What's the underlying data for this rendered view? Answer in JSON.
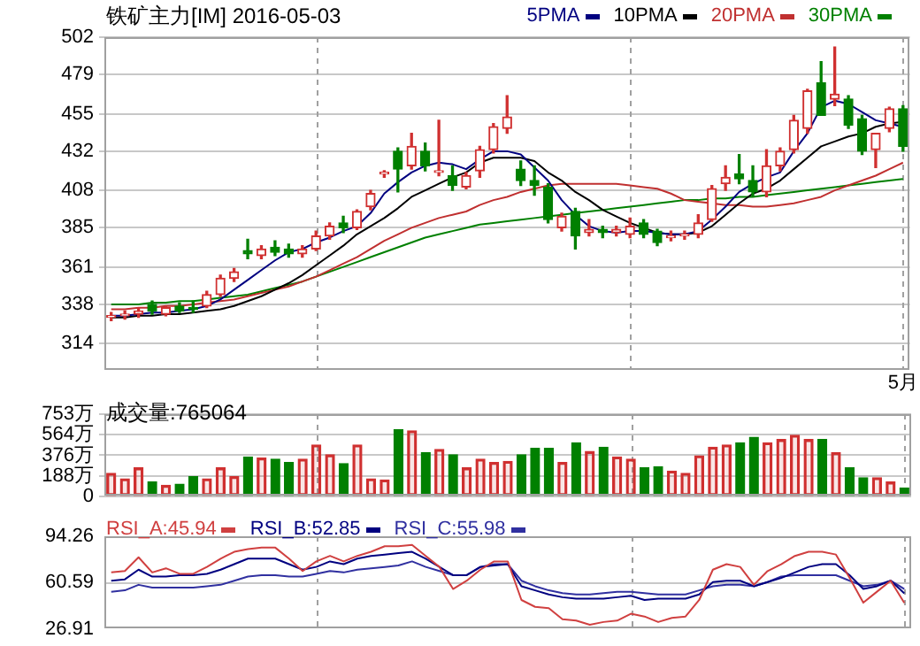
{
  "chart_data": [
    {
      "type": "candlestick",
      "title": "铁矿主力[IM] 2016-05-03",
      "categories": [
        null,
        null,
        null,
        null,
        null,
        null,
        null,
        null,
        null,
        null,
        null,
        null,
        null,
        null,
        null,
        null,
        null,
        null,
        null,
        null,
        null,
        null,
        null,
        null,
        null,
        null,
        null,
        null,
        null,
        null,
        null,
        null,
        null,
        null,
        null,
        null,
        null,
        null,
        null,
        null,
        null,
        null,
        null,
        null,
        null,
        null,
        null,
        null,
        null,
        null,
        null,
        null,
        null,
        null,
        null,
        null,
        null,
        null,
        "5月"
      ],
      "ohlc": [
        [
          330,
          333,
          328,
          331
        ],
        [
          331,
          334,
          329,
          332
        ],
        [
          332,
          336,
          330,
          334
        ],
        [
          338,
          340,
          332,
          334
        ],
        [
          332,
          337,
          331,
          336
        ],
        [
          337,
          339,
          333,
          334
        ],
        [
          336,
          340,
          333,
          335
        ],
        [
          337,
          346,
          336,
          344
        ],
        [
          344,
          356,
          343,
          354
        ],
        [
          354,
          360,
          352,
          358
        ],
        [
          371,
          378,
          366,
          369
        ],
        [
          368,
          374,
          366,
          372
        ],
        [
          373,
          377,
          368,
          370
        ],
        [
          372,
          375,
          367,
          369
        ],
        [
          369,
          374,
          367,
          372
        ],
        [
          372,
          383,
          371,
          380
        ],
        [
          380,
          388,
          378,
          386
        ],
        [
          388,
          392,
          382,
          385
        ],
        [
          385,
          396,
          384,
          395
        ],
        [
          398,
          408,
          396,
          406
        ],
        [
          418,
          420,
          416,
          419
        ],
        [
          432,
          434,
          407,
          421
        ],
        [
          423,
          443,
          421,
          435
        ],
        [
          432,
          437,
          420,
          423
        ],
        [
          419,
          451,
          417,
          420
        ],
        [
          417,
          423,
          408,
          411
        ],
        [
          410,
          419,
          409,
          417
        ],
        [
          420,
          435,
          416,
          433
        ],
        [
          433,
          449,
          431,
          447
        ],
        [
          446,
          466,
          443,
          453
        ],
        [
          421,
          426,
          411,
          414
        ],
        [
          414,
          423,
          405,
          411
        ],
        [
          410,
          412,
          388,
          390
        ],
        [
          385,
          394,
          383,
          392
        ],
        [
          395,
          397,
          372,
          380
        ],
        [
          382,
          390,
          380,
          384
        ],
        [
          384,
          386,
          379,
          382
        ],
        [
          382,
          386,
          380,
          384
        ],
        [
          381,
          391,
          379,
          386
        ],
        [
          388,
          390,
          379,
          381
        ],
        [
          383,
          384,
          374,
          376
        ],
        [
          379,
          383,
          377,
          380
        ],
        [
          380,
          383,
          378,
          381
        ],
        [
          381,
          393,
          379,
          388
        ],
        [
          390,
          411,
          389,
          409
        ],
        [
          412,
          423,
          408,
          416
        ],
        [
          418,
          430,
          412,
          415
        ],
        [
          414,
          423,
          404,
          407
        ],
        [
          407,
          433,
          404,
          423
        ],
        [
          423,
          434,
          420,
          432
        ],
        [
          433,
          454,
          431,
          451
        ],
        [
          446,
          470,
          443,
          469
        ],
        [
          474,
          487,
          454,
          454
        ],
        [
          464,
          496,
          460,
          467
        ],
        [
          464,
          466,
          446,
          448
        ],
        [
          452,
          454,
          430,
          432
        ],
        [
          433,
          443,
          422,
          443
        ],
        [
          446,
          459,
          444,
          458
        ],
        [
          458,
          460,
          432,
          435
        ]
      ],
      "colors": [
        "#d03030",
        "#d03030",
        "#d03030",
        "#008000",
        "#d03030",
        "#008000",
        "#008000",
        "#d03030",
        "#d03030",
        "#d03030",
        "#008000",
        "#d03030",
        "#008000",
        "#008000",
        "#d03030",
        "#d03030",
        "#d03030",
        "#008000",
        "#d03030",
        "#d03030",
        "#d03030",
        "#008000",
        "#d03030",
        "#008000",
        "#d03030",
        "#008000",
        "#d03030",
        "#d03030",
        "#d03030",
        "#d03030",
        "#008000",
        "#008000",
        "#008000",
        "#d03030",
        "#008000",
        "#d03030",
        "#008000",
        "#d03030",
        "#d03030",
        "#008000",
        "#008000",
        "#d03030",
        "#d03030",
        "#d03030",
        "#d03030",
        "#d03030",
        "#008000",
        "#008000",
        "#d03030",
        "#d03030",
        "#d03030",
        "#d03030",
        "#008000",
        "#d03030",
        "#008000",
        "#008000",
        "#d03030",
        "#d03030",
        "#008000"
      ],
      "series": [
        {
          "type": "line",
          "name": "5PMA",
          "color": "#000080",
          "values": [
            331,
            331,
            332,
            333,
            333,
            334,
            335,
            337,
            341,
            347,
            353,
            359,
            365,
            370,
            372,
            376,
            379,
            383,
            386,
            394,
            406,
            413,
            419,
            423,
            425,
            424,
            421,
            427,
            432,
            432,
            430,
            422,
            414,
            402,
            393,
            386,
            383,
            382,
            383,
            383,
            382,
            381,
            381,
            383,
            390,
            398,
            407,
            412,
            416,
            419,
            432,
            443,
            459,
            463,
            461,
            456,
            451,
            449,
            447
          ]
        },
        {
          "type": "line",
          "name": "10PMA",
          "color": "#000000",
          "values": [
            330,
            330,
            331,
            331,
            332,
            332,
            333,
            334,
            335,
            337,
            340,
            343,
            347,
            351,
            356,
            362,
            368,
            374,
            381,
            386,
            391,
            397,
            404,
            408,
            412,
            416,
            419,
            425,
            428,
            428,
            428,
            426,
            419,
            414,
            407,
            402,
            396,
            392,
            388,
            385,
            382,
            381,
            381,
            382,
            386,
            393,
            400,
            406,
            409,
            414,
            421,
            428,
            435,
            438,
            441,
            443,
            447,
            449,
            450
          ]
        },
        {
          "type": "line",
          "name": "20PMA",
          "color": "#c03030",
          "values": [
            335,
            335,
            336,
            336,
            337,
            337,
            338,
            339,
            340,
            341,
            343,
            345,
            347,
            349,
            352,
            355,
            359,
            363,
            367,
            372,
            377,
            381,
            385,
            388,
            391,
            393,
            395,
            399,
            402,
            404,
            407,
            409,
            411,
            412,
            412,
            412,
            412,
            412,
            411,
            410,
            409,
            406,
            402,
            401,
            400,
            399,
            399,
            398,
            398,
            399,
            400,
            402,
            404,
            408,
            411,
            414,
            417,
            421,
            425
          ]
        },
        {
          "type": "line",
          "name": "30PMA",
          "color": "#008000",
          "values": [
            338,
            338,
            338,
            339,
            339,
            340,
            340,
            341,
            342,
            343,
            344,
            346,
            348,
            350,
            352,
            355,
            358,
            361,
            364,
            367,
            370,
            373,
            376,
            379,
            381,
            383,
            385,
            387,
            388,
            389,
            390,
            391,
            392,
            393,
            394,
            395,
            396,
            397,
            398,
            399,
            400,
            401,
            402,
            402,
            403,
            403,
            404,
            404,
            405,
            406,
            407,
            408,
            409,
            410,
            411,
            412,
            413,
            414,
            415
          ]
        }
      ],
      "ylim": [
        298,
        502
      ],
      "yticks": [
        502,
        479,
        455,
        432,
        408,
        385,
        361,
        338,
        314
      ],
      "grid": true,
      "legend": "top right"
    },
    {
      "type": "bar",
      "title": "成交量:765064",
      "categories": [
        null,
        null,
        null,
        null,
        null,
        null,
        null,
        null,
        null,
        null,
        null,
        null,
        null,
        null,
        null,
        null,
        null,
        null,
        null,
        null,
        null,
        null,
        null,
        null,
        null,
        null,
        null,
        null,
        null,
        null,
        null,
        null,
        null,
        null,
        null,
        null,
        null,
        null,
        null,
        null,
        null,
        null,
        null,
        null,
        null,
        null,
        null,
        null,
        null,
        null,
        null,
        null,
        null,
        null,
        null,
        null,
        null,
        null,
        null
      ],
      "values": [
        210,
        160,
        260,
        130,
        100,
        110,
        180,
        160,
        260,
        180,
        360,
        350,
        340,
        310,
        340,
        470,
        380,
        300,
        470,
        160,
        150,
        610,
        600,
        400,
        430,
        380,
        260,
        340,
        310,
        320,
        380,
        440,
        440,
        310,
        490,
        410,
        450,
        360,
        340,
        260,
        270,
        230,
        210,
        370,
        450,
        470,
        490,
        540,
        490,
        520,
        560,
        520,
        520,
        400,
        260,
        170,
        170,
        130,
        76.5
      ],
      "colors": [
        "#d03030",
        "#d03030",
        "#d03030",
        "#008000",
        "#d03030",
        "#008000",
        "#008000",
        "#d03030",
        "#d03030",
        "#d03030",
        "#008000",
        "#d03030",
        "#008000",
        "#008000",
        "#d03030",
        "#d03030",
        "#d03030",
        "#008000",
        "#d03030",
        "#d03030",
        "#d03030",
        "#008000",
        "#d03030",
        "#008000",
        "#d03030",
        "#008000",
        "#d03030",
        "#d03030",
        "#d03030",
        "#d03030",
        "#008000",
        "#008000",
        "#008000",
        "#d03030",
        "#008000",
        "#d03030",
        "#008000",
        "#d03030",
        "#d03030",
        "#008000",
        "#008000",
        "#d03030",
        "#d03030",
        "#d03030",
        "#d03030",
        "#d03030",
        "#008000",
        "#008000",
        "#d03030",
        "#d03030",
        "#d03030",
        "#d03030",
        "#008000",
        "#d03030",
        "#008000",
        "#008000",
        "#d03030",
        "#d03030",
        "#008000"
      ],
      "ylim": [
        0,
        753
      ],
      "yticks": [
        0,
        {
          "value": 188,
          "label": "188万"
        },
        {
          "value": 376,
          "label": "376万"
        },
        {
          "value": 564,
          "label": "564万"
        },
        {
          "value": 753,
          "label": "753万"
        }
      ],
      "grid": true,
      "tick_labels": "y"
    },
    {
      "type": "line",
      "categories": [
        null,
        null,
        null,
        null,
        null,
        null,
        null,
        null,
        null,
        null,
        null,
        null,
        null,
        null,
        null,
        null,
        null,
        null,
        null,
        null,
        null,
        null,
        null,
        null,
        null,
        null,
        null,
        null,
        null,
        null,
        null,
        null,
        null,
        null,
        null,
        null,
        null,
        null,
        null,
        null,
        null,
        null,
        null,
        null,
        null,
        null,
        null,
        null,
        null,
        null,
        null,
        null,
        null,
        null,
        null,
        null,
        null,
        null,
        null
      ],
      "series": [
        {
          "name": "RSI_A:45.94",
          "color": "#d04040",
          "values": [
            68,
            69,
            79,
            68,
            71,
            67,
            67,
            72,
            78,
            83,
            85,
            86,
            86,
            78,
            69,
            76,
            80,
            76,
            80,
            83,
            87,
            87,
            88,
            80,
            72,
            56,
            62,
            70,
            76,
            76,
            48,
            43,
            42,
            34,
            33,
            30,
            32,
            33,
            38,
            36,
            32,
            35,
            36,
            48,
            70,
            74,
            72,
            59,
            69,
            74,
            80,
            83,
            83,
            81,
            64,
            46,
            54,
            62,
            45.94
          ]
        },
        {
          "name": "RSI_B:52.85",
          "color": "#000080",
          "values": [
            62,
            63,
            70,
            65,
            65,
            66,
            66,
            67,
            70,
            74,
            78,
            78,
            78,
            74,
            70,
            72,
            76,
            74,
            78,
            80,
            81,
            82,
            83,
            78,
            72,
            66,
            66,
            72,
            73,
            74,
            58,
            55,
            52,
            50,
            49,
            49,
            49,
            50,
            51,
            48,
            49,
            49,
            49,
            52,
            61,
            62,
            62,
            58,
            61,
            64,
            68,
            72,
            74,
            74,
            66,
            56,
            58,
            62,
            52.85
          ]
        },
        {
          "name": "RSI_C:55.98",
          "color": "#3030a0",
          "values": [
            54,
            55,
            59,
            57,
            57,
            57,
            57,
            58,
            59,
            62,
            65,
            66,
            66,
            65,
            65,
            67,
            69,
            68,
            70,
            71,
            72,
            73,
            76,
            72,
            69,
            66,
            66,
            72,
            74,
            74,
            62,
            58,
            55,
            53,
            52,
            52,
            53,
            54,
            54,
            53,
            52,
            52,
            52,
            55,
            58,
            59,
            59,
            58,
            61,
            65,
            66,
            66,
            66,
            66,
            62,
            58,
            59,
            62,
            55.98
          ]
        }
      ],
      "ylim": [
        26.91,
        94.26
      ],
      "yticks": [
        94.26,
        60.59,
        26.91
      ],
      "grid": "x",
      "tick_labels": "y",
      "legend": "top left",
      "ref_lines": [
        {
          "axis": "y",
          "value": 60.59,
          "color": "#c8c8c8"
        }
      ]
    }
  ]
}
